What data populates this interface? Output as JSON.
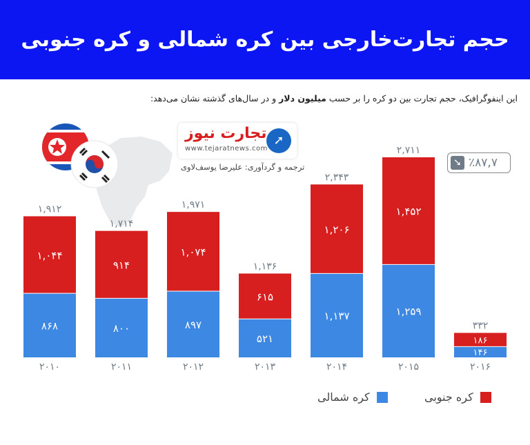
{
  "header": {
    "title": "حجم تجارت‌خارجی بین کره شمالی و کره جنوبی"
  },
  "intro": {
    "before": "این اینفوگرافیک، حجم تجارت بین دو کره را بر حسب ",
    "bold": "میلیون دلار",
    "after": " و در سال‌های گذشته نشان می‌دهد:"
  },
  "logo": {
    "name": "تجارت نیوز",
    "url": "www.tejaratnews.com",
    "credit": "ترجمه و گردآوری: علیرضا یوسف‌لاوی"
  },
  "change_badge": {
    "text": "٪۸۷,۷",
    "icon": "arrow-down-right-icon"
  },
  "colors": {
    "banner": "#0b16f2",
    "south": "#d81f1f",
    "north": "#3d88e2",
    "text": "#6f7b86"
  },
  "legend": {
    "south": "کره جنوبی",
    "north": "کره شمالی"
  },
  "chart_data": {
    "type": "bar",
    "stacked": true,
    "title": "",
    "xlabel": "",
    "ylabel": "",
    "categories": [
      "۲۰۱۰",
      "۲۰۱۱",
      "۲۰۱۲",
      "۲۰۱۳",
      "۲۰۱۴",
      "۲۰۱۵",
      "۲۰۱۶"
    ],
    "series": [
      {
        "name": "کره شمالی",
        "values": [
          868,
          800,
          897,
          521,
          1137,
          1259,
          146
        ],
        "labels": [
          "۸۶۸",
          "۸۰۰",
          "۸۹۷",
          "۵۲۱",
          "۱,۱۳۷",
          "۱,۲۵۹",
          "۱۴۶"
        ]
      },
      {
        "name": "کره جنوبی",
        "values": [
          1044,
          914,
          1074,
          615,
          1206,
          1452,
          186
        ],
        "labels": [
          "۱,۰۴۴",
          "۹۱۴",
          "۱,۰۷۴",
          "۶۱۵",
          "۱,۲۰۶",
          "۱,۴۵۲",
          "۱۸۶"
        ]
      }
    ],
    "totals": [
      1912,
      1714,
      1971,
      1136,
      2343,
      2711,
      332
    ],
    "total_labels": [
      "۱,۹۱۲",
      "۱,۷۱۴",
      "۱,۹۷۱",
      "۱,۱۳۶",
      "۲,۳۴۳",
      "۲,۷۱۱",
      "۳۳۲"
    ],
    "ylim": [
      0,
      2711
    ],
    "grid": false,
    "legend": "bottom"
  }
}
